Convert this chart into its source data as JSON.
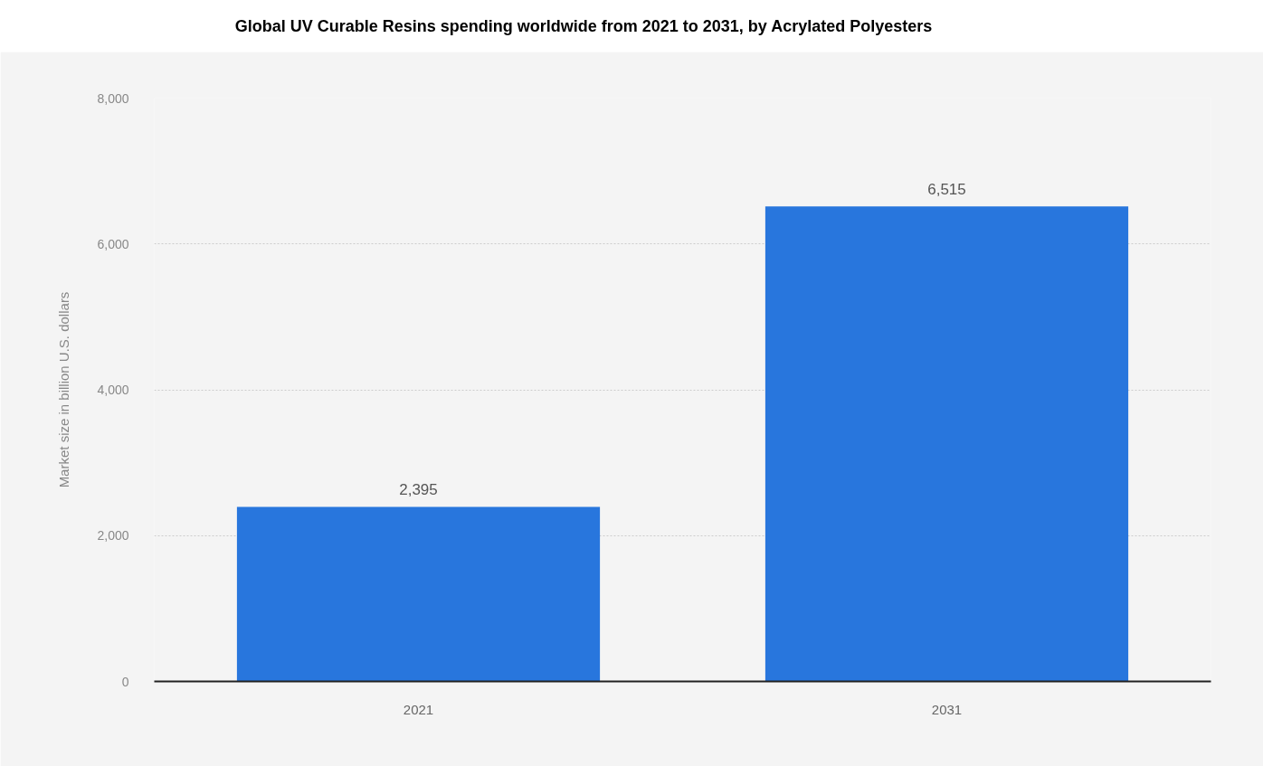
{
  "chart_data": {
    "type": "bar",
    "title": "Global UV Curable Resins spending worldwide from 2021 to 2031, by Acrylated Polyesters",
    "ylabel": "Market size in billion U.S. dollars",
    "categories": [
      "2021",
      "2031"
    ],
    "values": [
      2395,
      6515
    ],
    "value_labels": [
      "2,395",
      "6,515"
    ],
    "color": "#2876dd",
    "ylim": [
      0,
      8000
    ],
    "yticks": [
      0,
      {
        "value": 2000,
        "label": "2,000"
      },
      {
        "value": 4000,
        "label": "4,000"
      },
      {
        "value": 6000,
        "label": "6,000"
      },
      {
        "value": 8000,
        "label": "8,000"
      }
    ],
    "grid": "y"
  }
}
